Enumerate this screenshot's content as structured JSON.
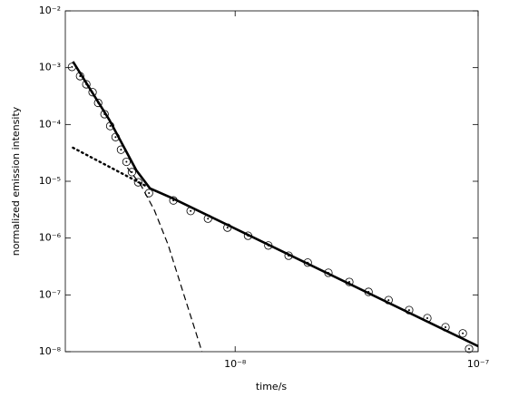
{
  "chart_data": {
    "type": "line",
    "x_label": "time/s",
    "y_label": "normalized emission intensity",
    "x_scale": "log",
    "y_scale": "log",
    "xlim": [
      2e-09,
      1e-07
    ],
    "ylim": [
      1e-08,
      0.01
    ],
    "xticks": [
      {
        "value": 1e-08,
        "label": "10⁻⁸"
      },
      {
        "value": 1e-07,
        "label": "10⁻⁷"
      }
    ],
    "yticks": [
      {
        "value": 1e-08,
        "label": "10⁻⁸"
      },
      {
        "value": 1e-07,
        "label": "10⁻⁷"
      },
      {
        "value": 1e-06,
        "label": "10⁻⁶"
      },
      {
        "value": 1e-05,
        "label": "10⁻⁵"
      },
      {
        "value": 0.0001,
        "label": "10⁻⁴"
      },
      {
        "value": 0.001,
        "label": "10⁻³"
      },
      {
        "value": 0.01,
        "label": "10⁻²"
      }
    ],
    "grid": false,
    "series": [
      {
        "style": "markers",
        "color": "#000000",
        "x": [
          2.13e-09,
          2.3e-09,
          2.44e-09,
          2.59e-09,
          2.73e-09,
          2.9e-09,
          3.06e-09,
          3.22e-09,
          3.39e-09,
          3.57e-09,
          3.76e-09,
          3.99e-09,
          4.42e-09,
          5.57e-09,
          6.56e-09,
          7.73e-09,
          9.3e-09,
          1.13e-08,
          1.37e-08,
          1.66e-08,
          1.99e-08,
          2.42e-08,
          2.95e-08,
          3.54e-08,
          4.28e-08,
          5.2e-08,
          6.18e-08,
          7.34e-08,
          8.65e-08,
          9.18e-08
        ],
        "values": [
          0.00103,
          0.00071,
          0.00051,
          0.00037,
          0.00024,
          0.000152,
          9.4e-05,
          6e-05,
          3.6e-05,
          2.2e-05,
          1.45e-05,
          9.6e-06,
          6.2e-06,
          4.6e-06,
          3e-06,
          2.2e-06,
          1.53e-06,
          1.1e-06,
          7.4e-07,
          4.9e-07,
          3.7e-07,
          2.45e-07,
          1.69e-07,
          1.13e-07,
          8.1e-08,
          5.4e-08,
          3.9e-08,
          2.7e-08,
          2.1e-08,
          1.12e-08
        ]
      },
      {
        "style": "solid",
        "color": "#000000",
        "x": [
          2.15e-09,
          3.03e-09,
          3.92e-09,
          4.46e-09,
          5.53e-09,
          1e-07
        ],
        "values": [
          0.00128,
          0.000122,
          1.56e-05,
          7.5e-06,
          5e-06,
          1.25e-08
        ]
      },
      {
        "style": "dotted",
        "color": "#000000",
        "x": [
          2.15e-09,
          4.28e-09
        ],
        "values": [
          3.9e-05,
          8.3e-06
        ]
      },
      {
        "style": "dashed",
        "color": "#000000",
        "x": [
          3.6e-09,
          4.09e-09,
          4.65e-09,
          5.3e-09,
          6e-09,
          6.7e-09,
          7.3e-09
        ],
        "values": [
          1.74e-05,
          8.6e-06,
          3.1e-06,
          7.6e-07,
          1.41e-07,
          3.2e-08,
          1e-08
        ]
      }
    ]
  }
}
